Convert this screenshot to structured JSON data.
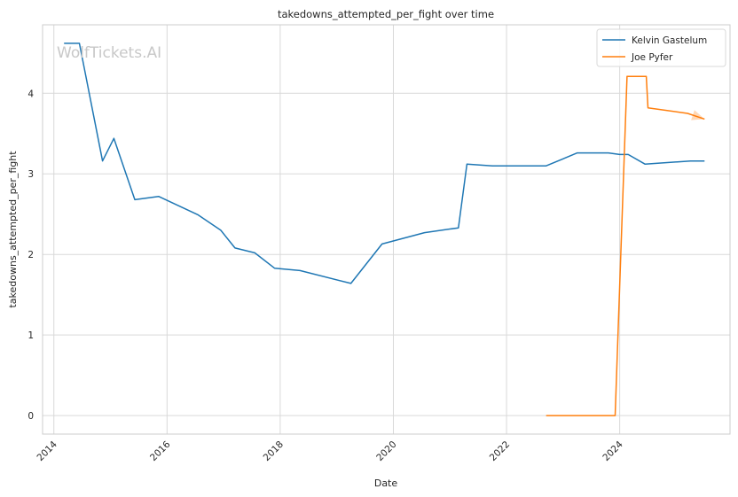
{
  "chart_data": {
    "type": "line",
    "title": "takedowns_attempted_per_fight over time",
    "xlabel": "Date",
    "ylabel": "takedowns_attempted_per_fight",
    "watermark": "WolfTickets.AI",
    "xlim": [
      2013.8,
      2025.95
    ],
    "ylim": [
      -0.23,
      4.85
    ],
    "x_ticks": [
      2014,
      2016,
      2018,
      2020,
      2022,
      2024
    ],
    "y_ticks": [
      0,
      1,
      2,
      3,
      4
    ],
    "grid": true,
    "legend": "top-right",
    "series": [
      {
        "name": "Kelvin Gastelum",
        "color": "#1f77b4",
        "points": [
          [
            2014.18,
            4.62
          ],
          [
            2014.45,
            4.62
          ],
          [
            2014.86,
            3.16
          ],
          [
            2015.06,
            3.44
          ],
          [
            2015.43,
            2.68
          ],
          [
            2015.85,
            2.72
          ],
          [
            2016.55,
            2.49
          ],
          [
            2016.95,
            2.3
          ],
          [
            2017.2,
            2.08
          ],
          [
            2017.55,
            2.02
          ],
          [
            2017.9,
            1.83
          ],
          [
            2018.35,
            1.8
          ],
          [
            2019.25,
            1.64
          ],
          [
            2019.8,
            2.13
          ],
          [
            2020.55,
            2.27
          ],
          [
            2021.15,
            2.33
          ],
          [
            2021.3,
            3.12
          ],
          [
            2021.75,
            3.1
          ],
          [
            2022.7,
            3.1
          ],
          [
            2023.25,
            3.26
          ],
          [
            2023.8,
            3.26
          ],
          [
            2024.0,
            3.24
          ],
          [
            2024.15,
            3.24
          ],
          [
            2024.45,
            3.12
          ],
          [
            2025.25,
            3.16
          ],
          [
            2025.5,
            3.16
          ]
        ]
      },
      {
        "name": "Joe Pyfer",
        "color": "#ff7f0e",
        "points": [
          [
            2022.7,
            0.0
          ],
          [
            2023.92,
            0.0
          ],
          [
            2024.13,
            4.21
          ],
          [
            2024.47,
            4.21
          ],
          [
            2024.5,
            3.82
          ],
          [
            2025.2,
            3.75
          ],
          [
            2025.5,
            3.68
          ]
        ]
      }
    ]
  }
}
